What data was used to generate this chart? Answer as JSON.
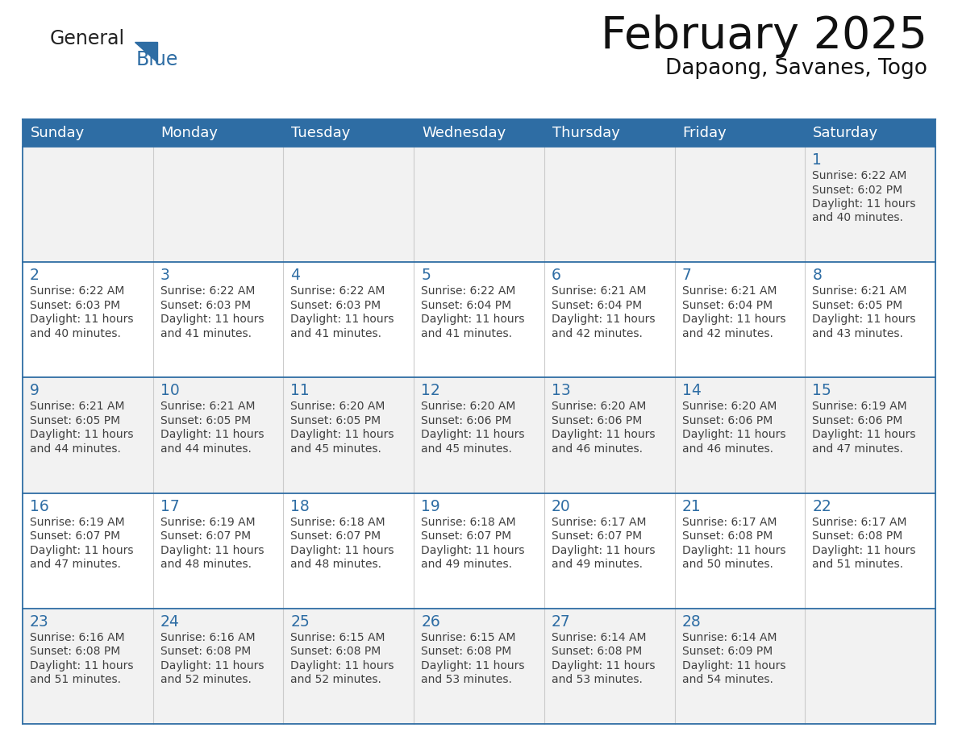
{
  "title": "February 2025",
  "subtitle": "Dapaong, Savanes, Togo",
  "header_bg": "#2E6DA4",
  "header_text_color": "#FFFFFF",
  "row_bg": [
    "#F2F2F2",
    "#FFFFFF",
    "#F2F2F2",
    "#FFFFFF",
    "#F2F2F2"
  ],
  "day_number_color": "#2E6DA4",
  "info_text_color": "#404040",
  "border_color": "#2E6DA4",
  "grid_line_color": "#CCCCCC",
  "days_of_week": [
    "Sunday",
    "Monday",
    "Tuesday",
    "Wednesday",
    "Thursday",
    "Friday",
    "Saturday"
  ],
  "calendar_data": [
    [
      null,
      null,
      null,
      null,
      null,
      null,
      {
        "day": 1,
        "sunrise": "6:22 AM",
        "sunset": "6:02 PM",
        "daylight_h": "11 hours",
        "daylight_m": "40 minutes"
      }
    ],
    [
      {
        "day": 2,
        "sunrise": "6:22 AM",
        "sunset": "6:03 PM",
        "daylight_h": "11 hours",
        "daylight_m": "40 minutes"
      },
      {
        "day": 3,
        "sunrise": "6:22 AM",
        "sunset": "6:03 PM",
        "daylight_h": "11 hours",
        "daylight_m": "41 minutes"
      },
      {
        "day": 4,
        "sunrise": "6:22 AM",
        "sunset": "6:03 PM",
        "daylight_h": "11 hours",
        "daylight_m": "41 minutes"
      },
      {
        "day": 5,
        "sunrise": "6:22 AM",
        "sunset": "6:04 PM",
        "daylight_h": "11 hours",
        "daylight_m": "41 minutes"
      },
      {
        "day": 6,
        "sunrise": "6:21 AM",
        "sunset": "6:04 PM",
        "daylight_h": "11 hours",
        "daylight_m": "42 minutes"
      },
      {
        "day": 7,
        "sunrise": "6:21 AM",
        "sunset": "6:04 PM",
        "daylight_h": "11 hours",
        "daylight_m": "42 minutes"
      },
      {
        "day": 8,
        "sunrise": "6:21 AM",
        "sunset": "6:05 PM",
        "daylight_h": "11 hours",
        "daylight_m": "43 minutes"
      }
    ],
    [
      {
        "day": 9,
        "sunrise": "6:21 AM",
        "sunset": "6:05 PM",
        "daylight_h": "11 hours",
        "daylight_m": "44 minutes"
      },
      {
        "day": 10,
        "sunrise": "6:21 AM",
        "sunset": "6:05 PM",
        "daylight_h": "11 hours",
        "daylight_m": "44 minutes"
      },
      {
        "day": 11,
        "sunrise": "6:20 AM",
        "sunset": "6:05 PM",
        "daylight_h": "11 hours",
        "daylight_m": "45 minutes"
      },
      {
        "day": 12,
        "sunrise": "6:20 AM",
        "sunset": "6:06 PM",
        "daylight_h": "11 hours",
        "daylight_m": "45 minutes"
      },
      {
        "day": 13,
        "sunrise": "6:20 AM",
        "sunset": "6:06 PM",
        "daylight_h": "11 hours",
        "daylight_m": "46 minutes"
      },
      {
        "day": 14,
        "sunrise": "6:20 AM",
        "sunset": "6:06 PM",
        "daylight_h": "11 hours",
        "daylight_m": "46 minutes"
      },
      {
        "day": 15,
        "sunrise": "6:19 AM",
        "sunset": "6:06 PM",
        "daylight_h": "11 hours",
        "daylight_m": "47 minutes"
      }
    ],
    [
      {
        "day": 16,
        "sunrise": "6:19 AM",
        "sunset": "6:07 PM",
        "daylight_h": "11 hours",
        "daylight_m": "47 minutes"
      },
      {
        "day": 17,
        "sunrise": "6:19 AM",
        "sunset": "6:07 PM",
        "daylight_h": "11 hours",
        "daylight_m": "48 minutes"
      },
      {
        "day": 18,
        "sunrise": "6:18 AM",
        "sunset": "6:07 PM",
        "daylight_h": "11 hours",
        "daylight_m": "48 minutes"
      },
      {
        "day": 19,
        "sunrise": "6:18 AM",
        "sunset": "6:07 PM",
        "daylight_h": "11 hours",
        "daylight_m": "49 minutes"
      },
      {
        "day": 20,
        "sunrise": "6:17 AM",
        "sunset": "6:07 PM",
        "daylight_h": "11 hours",
        "daylight_m": "49 minutes"
      },
      {
        "day": 21,
        "sunrise": "6:17 AM",
        "sunset": "6:08 PM",
        "daylight_h": "11 hours",
        "daylight_m": "50 minutes"
      },
      {
        "day": 22,
        "sunrise": "6:17 AM",
        "sunset": "6:08 PM",
        "daylight_h": "11 hours",
        "daylight_m": "51 minutes"
      }
    ],
    [
      {
        "day": 23,
        "sunrise": "6:16 AM",
        "sunset": "6:08 PM",
        "daylight_h": "11 hours",
        "daylight_m": "51 minutes"
      },
      {
        "day": 24,
        "sunrise": "6:16 AM",
        "sunset": "6:08 PM",
        "daylight_h": "11 hours",
        "daylight_m": "52 minutes"
      },
      {
        "day": 25,
        "sunrise": "6:15 AM",
        "sunset": "6:08 PM",
        "daylight_h": "11 hours",
        "daylight_m": "52 minutes"
      },
      {
        "day": 26,
        "sunrise": "6:15 AM",
        "sunset": "6:08 PM",
        "daylight_h": "11 hours",
        "daylight_m": "53 minutes"
      },
      {
        "day": 27,
        "sunrise": "6:14 AM",
        "sunset": "6:08 PM",
        "daylight_h": "11 hours",
        "daylight_m": "53 minutes"
      },
      {
        "day": 28,
        "sunrise": "6:14 AM",
        "sunset": "6:09 PM",
        "daylight_h": "11 hours",
        "daylight_m": "54 minutes"
      },
      null
    ]
  ]
}
